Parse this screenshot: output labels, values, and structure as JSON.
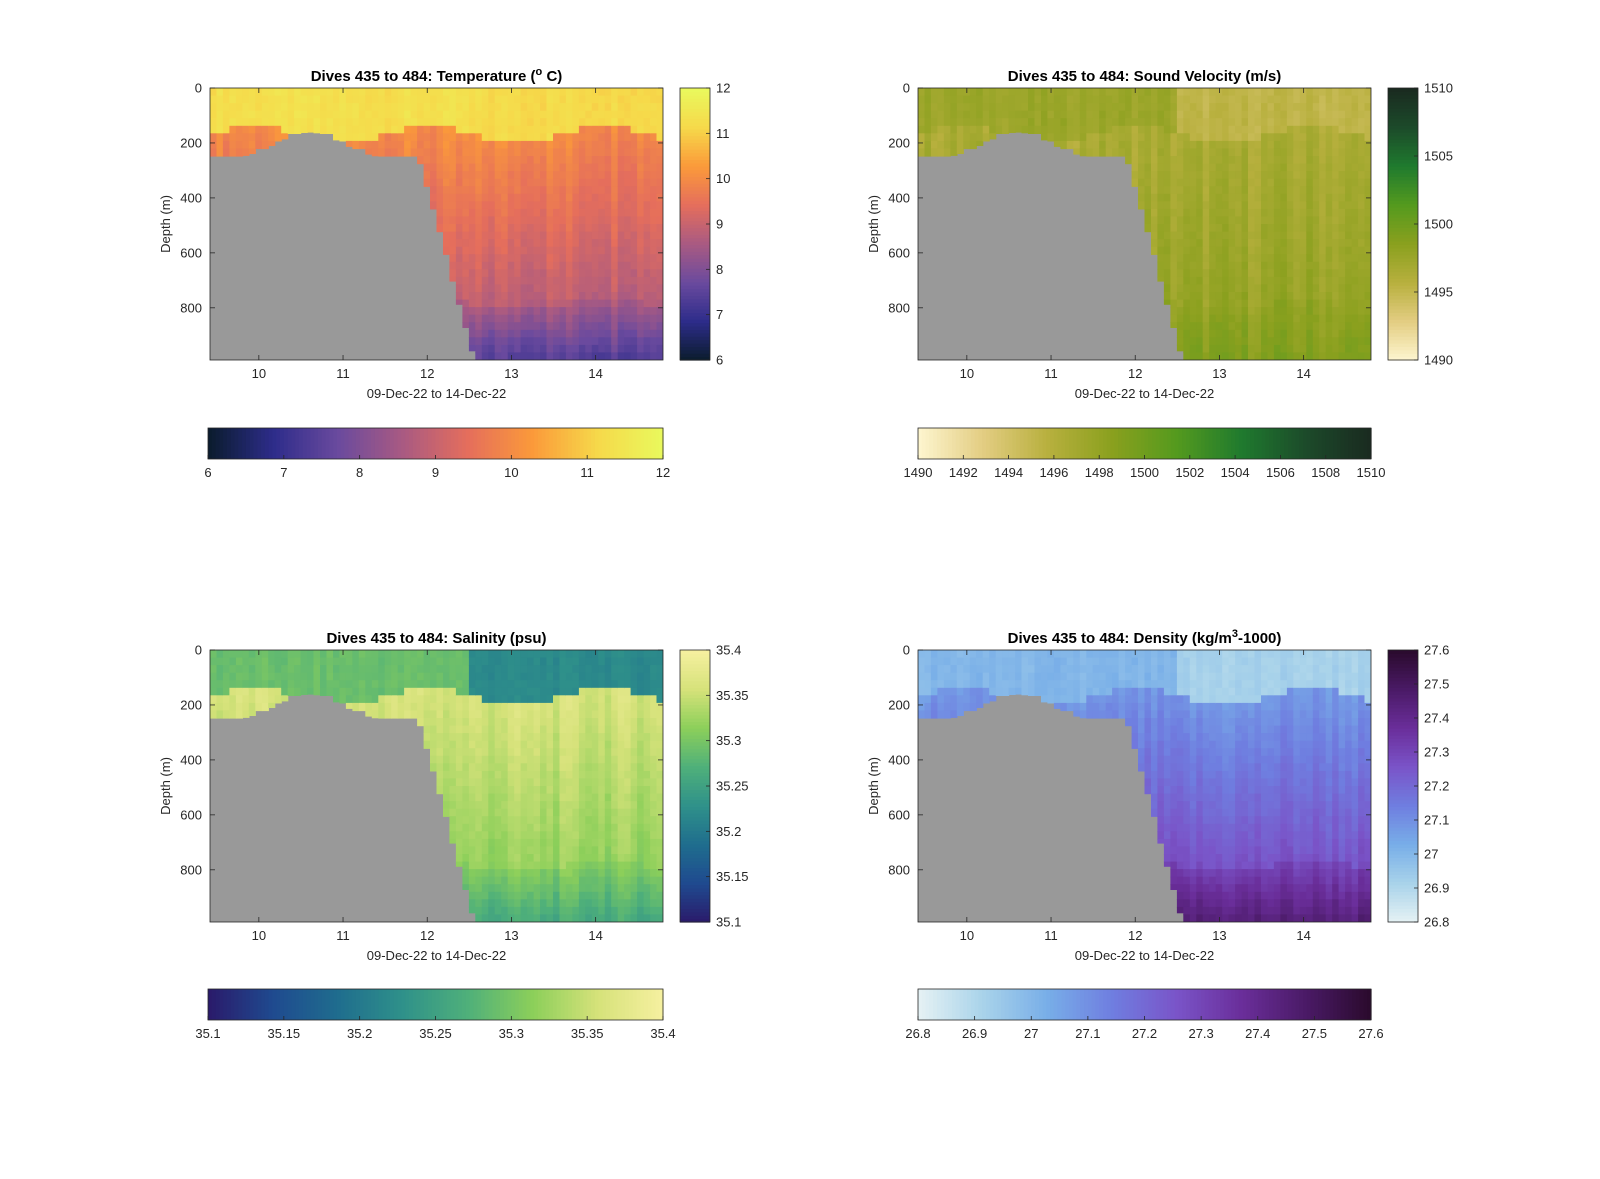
{
  "figure": {
    "background": "#ffffff",
    "mask_color": "#999999"
  },
  "chart_data": [
    {
      "type": "heatmap",
      "title": "Dives 435 to 484: Temperature (° C)",
      "title_parts": [
        "Dives 435 to 484: Temperature (",
        "o",
        " C)"
      ],
      "xlabel": "09-Dec-22 to 14-Dec-22",
      "ylabel": "Depth (m)",
      "xlim": [
        9.42,
        14.8
      ],
      "ylim": [
        0,
        990
      ],
      "y_reversed": true,
      "x_ticks": [
        "10",
        "11",
        "12",
        "13",
        "14"
      ],
      "y_ticks": [
        "0",
        "200",
        "400",
        "600",
        "800"
      ],
      "colormap": [
        "#0a1c2c",
        "#2d2c8a",
        "#6a4a9e",
        "#a95a82",
        "#e56e5c",
        "#fb9a3a",
        "#f6d94a",
        "#e9f95d"
      ],
      "clim": [
        6,
        12
      ],
      "colorbar_ticks": [
        "6",
        "7",
        "8",
        "9",
        "10",
        "11",
        "12"
      ],
      "horizontal_colorbar_ticks": [
        "6",
        "7",
        "8",
        "9",
        "10",
        "11",
        "12"
      ],
      "field": {
        "surface_value": 11.2,
        "mid_value": 10.0,
        "deep_value": 8.6,
        "bottom_value": 7.4,
        "transition_day": 12.5,
        "shelf_surface_value": 11.3
      }
    },
    {
      "type": "heatmap",
      "title": "Dives 435 to 484: Sound Velocity (m/s)",
      "xlabel": "09-Dec-22 to 14-Dec-22",
      "ylabel": "Depth (m)",
      "xlim": [
        9.42,
        14.8
      ],
      "ylim": [
        0,
        990
      ],
      "y_reversed": true,
      "x_ticks": [
        "10",
        "11",
        "12",
        "13",
        "14"
      ],
      "y_ticks": [
        "0",
        "200",
        "400",
        "600",
        "800"
      ],
      "colormap": [
        "#fef6d0",
        "#e3cd82",
        "#b8b03e",
        "#8aa01e",
        "#549a1e",
        "#1f7a2e",
        "#1c4a2a",
        "#1a2a20"
      ],
      "clim": [
        1490,
        1510
      ],
      "colorbar_ticks": [
        "1490",
        "1495",
        "1500",
        "1505",
        "1510"
      ],
      "horizontal_colorbar_ticks": [
        "1490",
        "1492",
        "1494",
        "1496",
        "1498",
        "1500",
        "1502",
        "1504",
        "1506",
        "1508",
        "1510"
      ],
      "field": {
        "surface_value": 1495.2,
        "mid_value": 1496.5,
        "deep_value": 1498.0,
        "bottom_value": 1499.0,
        "transition_day": 12.5,
        "shelf_surface_value": 1497.5
      }
    },
    {
      "type": "heatmap",
      "title": "Dives 435 to 484: Salinity (psu)",
      "xlabel": "09-Dec-22 to 14-Dec-22",
      "ylabel": "Depth (m)",
      "xlim": [
        9.42,
        14.8
      ],
      "ylim": [
        0,
        990
      ],
      "y_reversed": true,
      "x_ticks": [
        "10",
        "11",
        "12",
        "13",
        "14"
      ],
      "y_ticks": [
        "0",
        "200",
        "400",
        "600",
        "800"
      ],
      "colormap": [
        "#2a1a6a",
        "#1f4a8f",
        "#1f6d8e",
        "#2f918a",
        "#4fb07a",
        "#8ccf5a",
        "#d6e27a",
        "#f6f0a0"
      ],
      "clim": [
        35.1,
        35.4
      ],
      "colorbar_ticks": [
        "35.1",
        "35.15",
        "35.2",
        "35.25",
        "35.3",
        "35.35",
        "35.4"
      ],
      "horizontal_colorbar_ticks": [
        "35.1",
        "35.15",
        "35.2",
        "35.25",
        "35.3",
        "35.35",
        "35.4"
      ],
      "field": {
        "surface_value": 35.22,
        "mid_value": 35.36,
        "deep_value": 35.31,
        "bottom_value": 35.26,
        "transition_day": 12.5,
        "shelf_surface_value": 35.29
      }
    },
    {
      "type": "heatmap",
      "title": "Dives 435 to 484: Density (kg/m³-1000)",
      "title_parts": [
        "Dives 435 to 484: Density (kg/m",
        "3",
        "-1000)"
      ],
      "xlabel": "09-Dec-22 to 14-Dec-22",
      "ylabel": "Depth (m)",
      "xlim": [
        9.42,
        14.8
      ],
      "ylim": [
        0,
        990
      ],
      "y_reversed": true,
      "x_ticks": [
        "10",
        "11",
        "12",
        "13",
        "14"
      ],
      "y_ticks": [
        "0",
        "200",
        "400",
        "600",
        "800"
      ],
      "colormap": [
        "#e6f2f4",
        "#a9d3ea",
        "#78aee8",
        "#6f7ee0",
        "#7a54c8",
        "#6a2e9a",
        "#4a1a66",
        "#2a0a2c"
      ],
      "clim": [
        26.8,
        27.6
      ],
      "colorbar_ticks": [
        "26.8",
        "26.9",
        "27",
        "27.1",
        "27.2",
        "27.3",
        "27.4",
        "27.5",
        "27.6"
      ],
      "horizontal_colorbar_ticks": [
        "26.8",
        "26.9",
        "27",
        "27.1",
        "27.2",
        "27.3",
        "27.4",
        "27.5",
        "27.6"
      ],
      "field": {
        "surface_value": 26.92,
        "mid_value": 27.08,
        "deep_value": 27.3,
        "bottom_value": 27.45,
        "transition_day": 12.5,
        "shelf_surface_value": 27.0
      }
    }
  ]
}
